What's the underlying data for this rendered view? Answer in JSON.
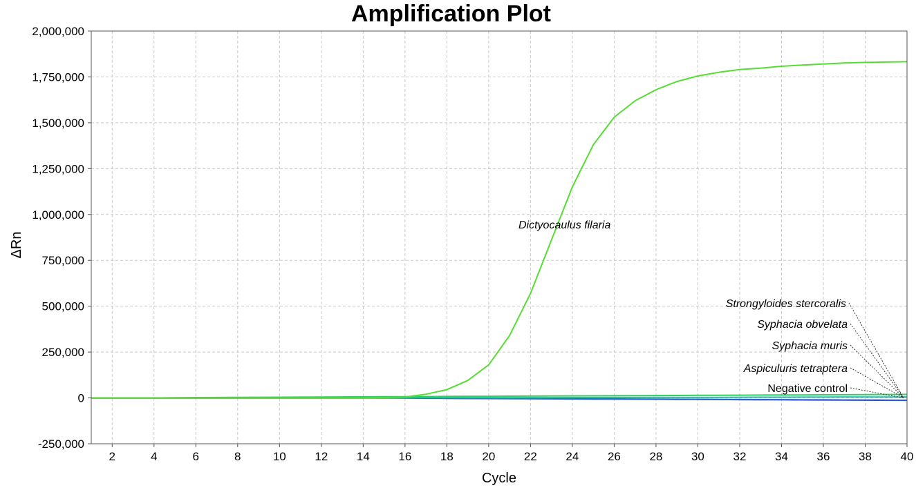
{
  "chart_data": {
    "type": "line",
    "title": "Amplification Plot",
    "xlabel": "Cycle",
    "ylabel": "ΔRn",
    "xlim": [
      1,
      40
    ],
    "ylim": [
      -250000,
      2000000
    ],
    "xticks": [
      2,
      4,
      6,
      8,
      10,
      12,
      14,
      16,
      18,
      20,
      22,
      24,
      26,
      28,
      30,
      32,
      34,
      36,
      38,
      40
    ],
    "yticks": [
      -250000,
      0,
      250000,
      500000,
      750000,
      1000000,
      1250000,
      1500000,
      1750000,
      2000000
    ],
    "ytick_labels": [
      "-250,000",
      "0",
      "250,000",
      "500,000",
      "750,000",
      "1,000,000",
      "1,250,000",
      "1,500,000",
      "1,750,000",
      "2,000,000"
    ],
    "grid": true,
    "annotations": [
      {
        "text": "Dictyocaulus filaria",
        "italic": true
      },
      {
        "text": "Strongyloides stercoralis",
        "italic": true
      },
      {
        "text": "Syphacia obvelata",
        "italic": true
      },
      {
        "text": "Syphacia muris",
        "italic": true
      },
      {
        "text": "Aspiculuris tetraptera",
        "italic": true
      },
      {
        "text": "Negative control",
        "italic": false
      }
    ],
    "x": [
      1,
      2,
      3,
      4,
      5,
      6,
      7,
      8,
      9,
      10,
      11,
      12,
      13,
      14,
      15,
      16,
      17,
      18,
      19,
      20,
      21,
      22,
      23,
      24,
      25,
      26,
      27,
      28,
      29,
      30,
      31,
      32,
      33,
      34,
      35,
      36,
      37,
      38,
      39,
      40
    ],
    "series": [
      {
        "color": "#55dd33",
        "values": [
          0,
          0,
          0,
          0,
          0,
          0,
          0,
          0,
          0,
          0,
          0,
          0,
          0,
          0,
          2000,
          5000,
          20000,
          45000,
          95000,
          180000,
          340000,
          570000,
          860000,
          1150000,
          1380000,
          1530000,
          1620000,
          1680000,
          1725000,
          1755000,
          1775000,
          1790000,
          1798000,
          1808000,
          1815000,
          1820000,
          1826000,
          1829000,
          1831000,
          1833000
        ]
      },
      {
        "color": "#33cc66",
        "values": [
          0,
          0,
          0,
          0,
          1000,
          2000,
          2500,
          3000,
          3500,
          4000,
          4500,
          5000,
          5500,
          6000,
          6500,
          7000,
          7500,
          8000,
          8500,
          9000,
          9500,
          10000,
          10500,
          11000,
          11500,
          12000,
          12500,
          13000,
          13500,
          14000,
          14500,
          15000,
          15500,
          16000,
          16500,
          17000,
          17500,
          18000,
          18500,
          19000
        ]
      },
      {
        "color": "#22bbaa",
        "values": [
          0,
          0,
          0,
          0,
          0,
          0,
          0,
          0,
          0,
          0,
          0,
          0,
          0,
          0,
          0,
          0,
          500,
          800,
          1000,
          1200,
          1400,
          1600,
          1800,
          2000,
          2200,
          2400,
          2600,
          2800,
          3000,
          3200,
          3400,
          3600,
          3800,
          4000,
          4200,
          4400,
          4600,
          4800,
          5000,
          5200
        ]
      },
      {
        "color": "#3366cc",
        "values": [
          0,
          0,
          0,
          0,
          0,
          0,
          0,
          0,
          0,
          0,
          0,
          0,
          0,
          0,
          0,
          -500,
          -1000,
          -1500,
          -2000,
          -2500,
          -3000,
          -3500,
          -4000,
          -4500,
          -5000,
          -5500,
          -6000,
          -6500,
          -7000,
          -7500,
          -8000,
          -8500,
          -9000,
          -9500,
          -10000,
          -10500,
          -11000,
          -11500,
          -12000,
          -12500
        ]
      },
      {
        "color": "#2222bb",
        "values": [
          0,
          0,
          0,
          0,
          0,
          0,
          0,
          0,
          0,
          0,
          0,
          0,
          0,
          0,
          0,
          -1000,
          -2000,
          -2500,
          -3000,
          -3500,
          -4000,
          -4500,
          -5000,
          -5500,
          -6000,
          -6500,
          -7000,
          -7500,
          -8000,
          -8500,
          -9000,
          -9500,
          -10000,
          -10500,
          -11000,
          -11500,
          -12000,
          -12500,
          -13000,
          -13500
        ]
      }
    ]
  }
}
